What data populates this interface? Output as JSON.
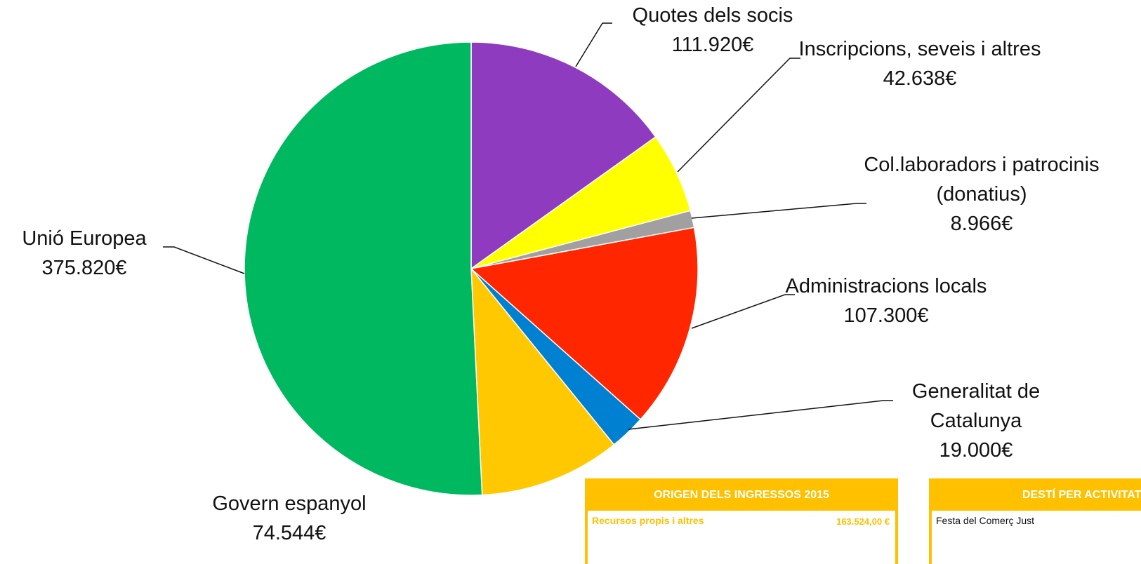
{
  "chart_data": {
    "type": "pie",
    "categories": [
      "Quotes dels socis",
      "Inscripcions, seveis i altres",
      "Col.laboradors i patrocinis (donatius)",
      "Administracions locals",
      "Generalitat de Catalunya",
      "Govern espanyol",
      "Unió Europea"
    ],
    "values": [
      111920,
      42638,
      8966,
      107300,
      19000,
      74544,
      375820
    ],
    "value_labels": [
      "111.920€",
      "42.638€",
      "8.966€",
      "107.300€",
      "19.000€",
      "74.544€",
      "375.820€"
    ],
    "colors": [
      "#8e3bbf",
      "#ffff00",
      "#a0a0a0",
      "#ff2600",
      "#0080d0",
      "#ffc800",
      "#00b85f"
    ]
  },
  "tables": [
    {
      "title": "ORIGEN DELS INGRESSOS 2015",
      "rows": [
        [
          "Recursos propis i altres",
          "163.524,00 €"
        ]
      ]
    },
    {
      "title": "DESTÍ PER ACTIVITATS",
      "rows": [
        [
          "Festa del Comerç Just"
        ]
      ]
    }
  ]
}
